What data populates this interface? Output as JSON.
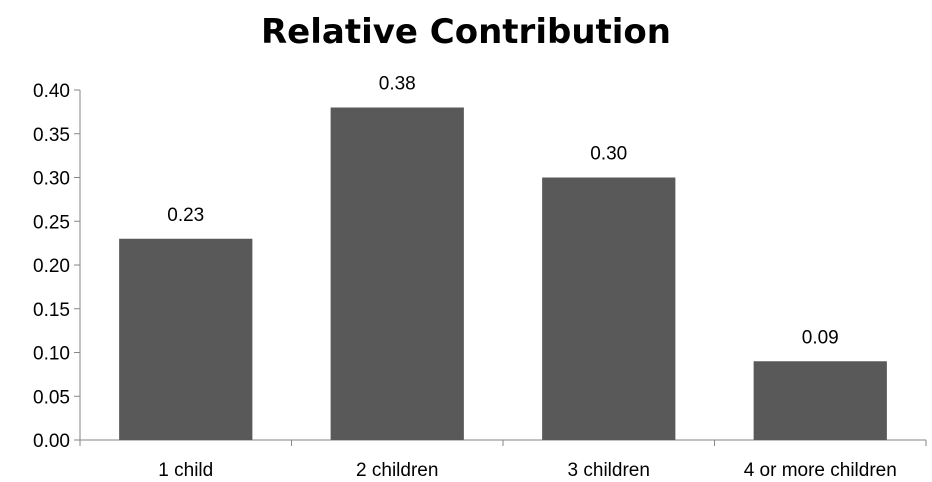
{
  "chart_data": {
    "type": "bar",
    "title": "Relative Contribution",
    "xlabel": "",
    "ylabel": "",
    "categories": [
      "1 child",
      "2 children",
      "3 children",
      "4 or more children"
    ],
    "values": [
      0.23,
      0.38,
      0.3,
      0.09
    ],
    "value_labels": [
      "0.23",
      "0.38",
      "0.30",
      "0.09"
    ],
    "ylim": [
      0,
      0.4
    ],
    "yticks": [
      0.0,
      0.05,
      0.1,
      0.15,
      0.2,
      0.25,
      0.3,
      0.35,
      0.4
    ],
    "ytick_labels": [
      "0.00",
      "0.05",
      "0.10",
      "0.15",
      "0.20",
      "0.25",
      "0.30",
      "0.35",
      "0.40"
    ],
    "grid": false,
    "legend": "none",
    "bar_color": "#595959",
    "axis_color": "#868686"
  }
}
